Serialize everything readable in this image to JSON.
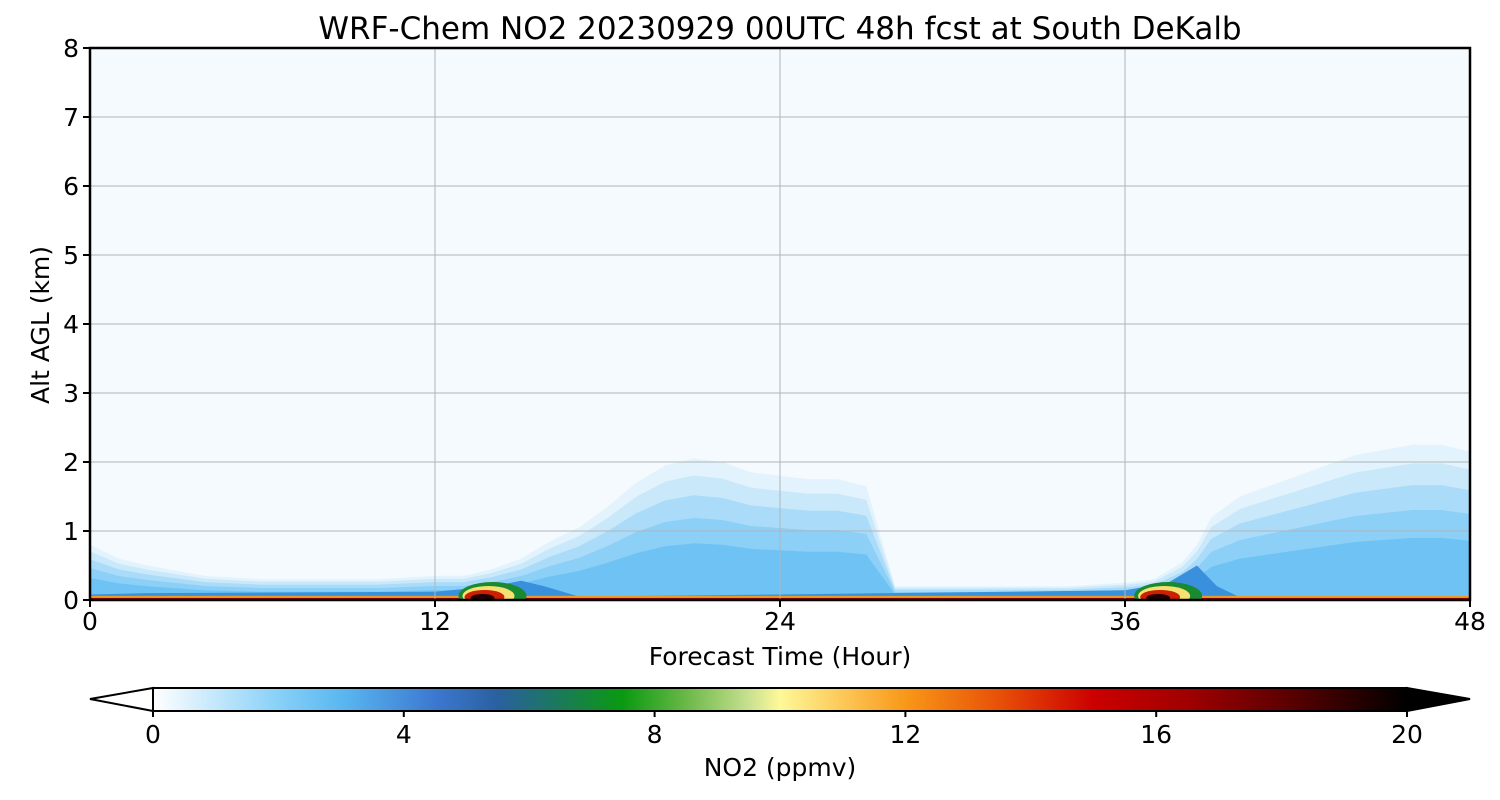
{
  "chart_data": {
    "type": "heatmap",
    "title": "WRF-Chem NO2  20230929 00UTC 48h fcst at South DeKalb",
    "xlabel": "Forecast Time (Hour)",
    "ylabel": "Alt AGL (km)",
    "xlim": [
      0,
      48
    ],
    "ylim": [
      0,
      8
    ],
    "xticks": [
      "0",
      "12",
      "24",
      "36",
      "48"
    ],
    "yticks": [
      "0",
      "1",
      "2",
      "3",
      "4",
      "5",
      "6",
      "7",
      "8"
    ],
    "grid": true,
    "colorbar": {
      "label": "NO2  (ppmv)",
      "range": [
        0,
        20
      ],
      "ticks": [
        "0",
        "4",
        "8",
        "12",
        "16",
        "20"
      ],
      "extend": "both",
      "stops": [
        {
          "v": 0,
          "c": "#ffffff"
        },
        {
          "v": 2,
          "c": "#88d0f8"
        },
        {
          "v": 3,
          "c": "#5ab8f0"
        },
        {
          "v": 4.5,
          "c": "#3c78d0"
        },
        {
          "v": 5.5,
          "c": "#2a60a0"
        },
        {
          "v": 6.5,
          "c": "#1a7a58"
        },
        {
          "v": 7.5,
          "c": "#0a9a10"
        },
        {
          "v": 8.5,
          "c": "#6ab848"
        },
        {
          "v": 9.5,
          "c": "#c8e090"
        },
        {
          "v": 10,
          "c": "#fff898"
        },
        {
          "v": 11,
          "c": "#fcc858"
        },
        {
          "v": 12,
          "c": "#f89818"
        },
        {
          "v": 13.5,
          "c": "#e85008"
        },
        {
          "v": 15,
          "c": "#cc0000"
        },
        {
          "v": 16.5,
          "c": "#a00000"
        },
        {
          "v": 18,
          "c": "#600000"
        },
        {
          "v": 20,
          "c": "#000000"
        }
      ]
    },
    "plume_tops_km": {
      "hours": [
        0,
        1,
        2,
        4,
        6,
        8,
        10,
        12,
        13,
        14,
        15,
        16,
        17,
        18,
        19,
        20,
        21,
        22,
        23,
        24,
        25,
        26,
        27,
        28,
        30,
        32,
        34,
        36,
        37,
        38,
        38.5,
        39,
        40,
        42,
        44,
        46,
        47,
        48
      ],
      "tops": [
        0.8,
        0.6,
        0.5,
        0.35,
        0.3,
        0.3,
        0.3,
        0.35,
        0.35,
        0.45,
        0.6,
        0.85,
        1.05,
        1.35,
        1.7,
        1.95,
        2.05,
        2.0,
        1.85,
        1.8,
        1.75,
        1.75,
        1.65,
        0.2,
        0.2,
        0.2,
        0.2,
        0.25,
        0.3,
        0.55,
        0.8,
        1.2,
        1.5,
        1.8,
        2.1,
        2.25,
        2.25,
        2.15
      ]
    },
    "surface_peaks": [
      {
        "hour": 14,
        "value": 19
      },
      {
        "hour": 37.5,
        "value": 19
      }
    ]
  }
}
